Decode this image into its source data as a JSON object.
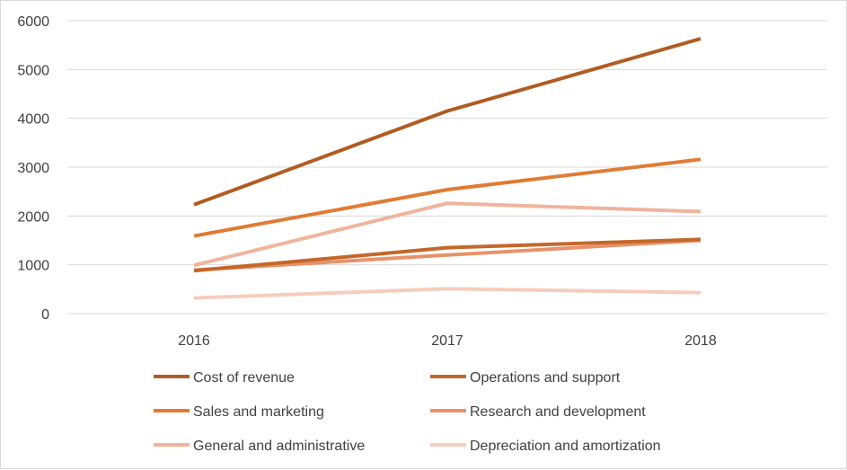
{
  "chart_data": {
    "type": "line",
    "title": "",
    "xlabel": "",
    "ylabel": "",
    "categories": [
      "2016",
      "2017",
      "2018"
    ],
    "ylim": [
      0,
      6000
    ],
    "yticks": [
      0,
      1000,
      2000,
      3000,
      4000,
      5000,
      6000
    ],
    "grid": true,
    "legend_position": "bottom",
    "series": [
      {
        "name": "Cost of revenue",
        "values": [
          2230,
          4150,
          5630
        ],
        "color": "#b05c22"
      },
      {
        "name": "Operations and support",
        "values": [
          880,
          1350,
          1520
        ],
        "color": "#c4672a"
      },
      {
        "name": "Sales and marketing",
        "values": [
          1590,
          2540,
          3160
        ],
        "color": "#e07b35"
      },
      {
        "name": "Research and development",
        "values": [
          890,
          1200,
          1500
        ],
        "color": "#e8926a"
      },
      {
        "name": "General and administrative",
        "values": [
          990,
          2260,
          2090
        ],
        "color": "#f0b49d"
      },
      {
        "name": "Depreciation and amortization",
        "values": [
          320,
          510,
          430
        ],
        "color": "#f6ccbd"
      }
    ]
  }
}
